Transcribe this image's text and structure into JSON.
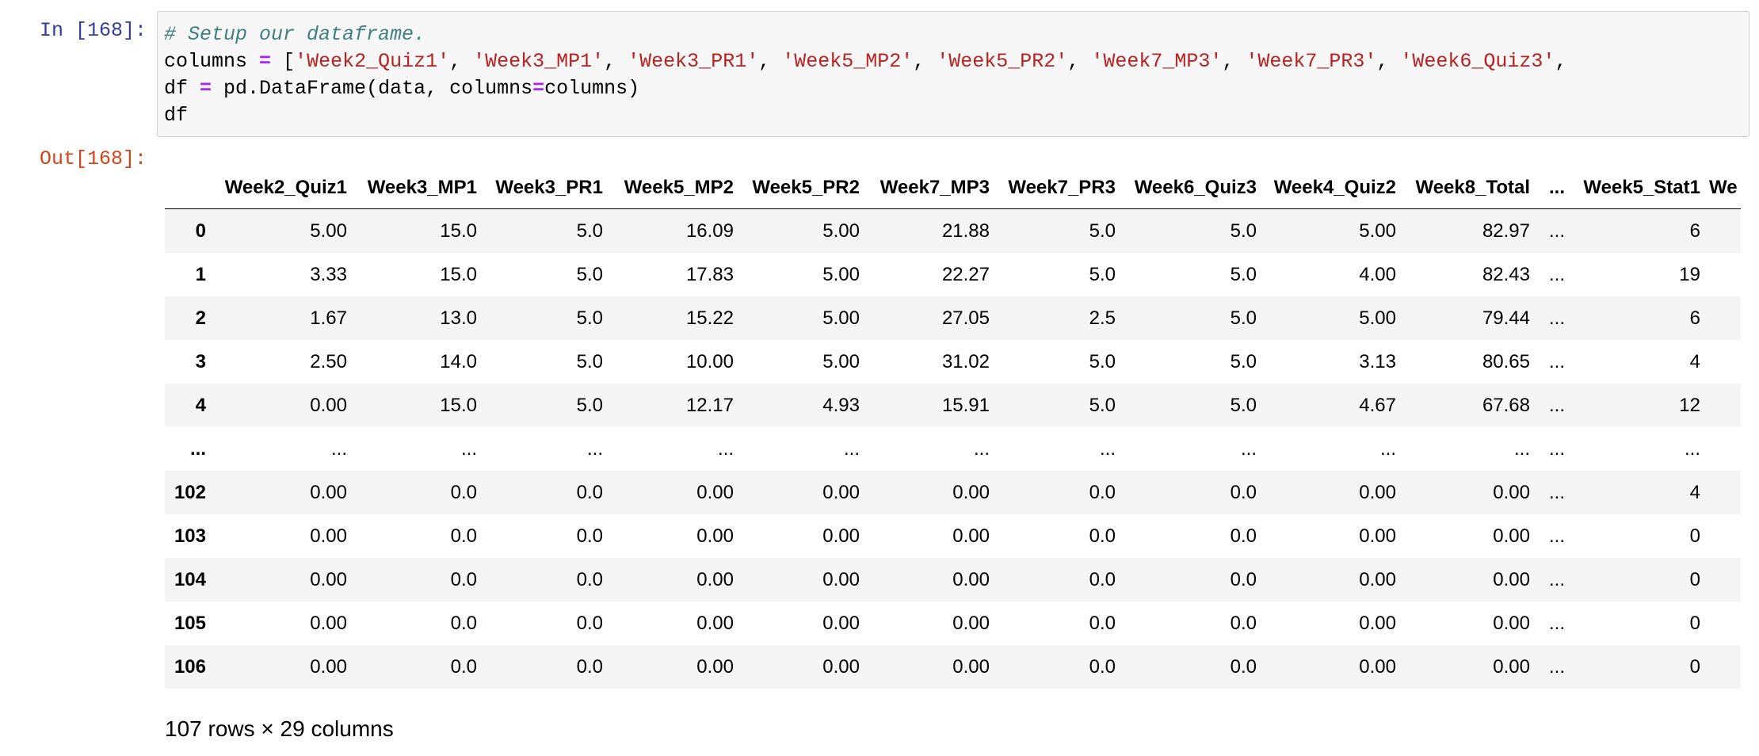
{
  "input": {
    "prompt": "In [168]:",
    "code": [
      "# Setup our dataframe.",
      "columns = ['Week2_Quiz1', 'Week3_MP1', 'Week3_PR1', 'Week5_MP2', 'Week5_PR2', 'Week7_MP3', 'Week7_PR3', 'Week6_Quiz3', ",
      "df = pd.DataFrame(data, columns=columns)",
      "df"
    ]
  },
  "output": {
    "prompt": "Out[168]:",
    "table": {
      "columns": [
        "Week2_Quiz1",
        "Week3_MP1",
        "Week3_PR1",
        "Week5_MP2",
        "Week5_PR2",
        "Week7_MP3",
        "Week7_PR3",
        "Week6_Quiz3",
        "Week4_Quiz2",
        "Week8_Total",
        "...",
        "Week5_Stat1",
        "We"
      ],
      "rows": [
        [
          "0",
          "5.00",
          "15.0",
          "5.0",
          "16.09",
          "5.00",
          "21.88",
          "5.0",
          "5.0",
          "5.00",
          "82.97",
          "...",
          "6"
        ],
        [
          "1",
          "3.33",
          "15.0",
          "5.0",
          "17.83",
          "5.00",
          "22.27",
          "5.0",
          "5.0",
          "4.00",
          "82.43",
          "...",
          "19"
        ],
        [
          "2",
          "1.67",
          "13.0",
          "5.0",
          "15.22",
          "5.00",
          "27.05",
          "2.5",
          "5.0",
          "5.00",
          "79.44",
          "...",
          "6"
        ],
        [
          "3",
          "2.50",
          "14.0",
          "5.0",
          "10.00",
          "5.00",
          "31.02",
          "5.0",
          "5.0",
          "3.13",
          "80.65",
          "...",
          "4"
        ],
        [
          "4",
          "0.00",
          "15.0",
          "5.0",
          "12.17",
          "4.93",
          "15.91",
          "5.0",
          "5.0",
          "4.67",
          "67.68",
          "...",
          "12"
        ],
        [
          "...",
          "...",
          "...",
          "...",
          "...",
          "...",
          "...",
          "...",
          "...",
          "...",
          "...",
          "...",
          "..."
        ],
        [
          "102",
          "0.00",
          "0.0",
          "0.0",
          "0.00",
          "0.00",
          "0.00",
          "0.0",
          "0.0",
          "0.00",
          "0.00",
          "...",
          "4"
        ],
        [
          "103",
          "0.00",
          "0.0",
          "0.0",
          "0.00",
          "0.00",
          "0.00",
          "0.0",
          "0.0",
          "0.00",
          "0.00",
          "...",
          "0"
        ],
        [
          "104",
          "0.00",
          "0.0",
          "0.0",
          "0.00",
          "0.00",
          "0.00",
          "0.0",
          "0.0",
          "0.00",
          "0.00",
          "...",
          "0"
        ],
        [
          "105",
          "0.00",
          "0.0",
          "0.0",
          "0.00",
          "0.00",
          "0.00",
          "0.0",
          "0.0",
          "0.00",
          "0.00",
          "...",
          "0"
        ],
        [
          "106",
          "0.00",
          "0.0",
          "0.0",
          "0.00",
          "0.00",
          "0.00",
          "0.0",
          "0.0",
          "0.00",
          "0.00",
          "...",
          "0"
        ]
      ]
    },
    "footer": "107 rows × 29 columns"
  }
}
